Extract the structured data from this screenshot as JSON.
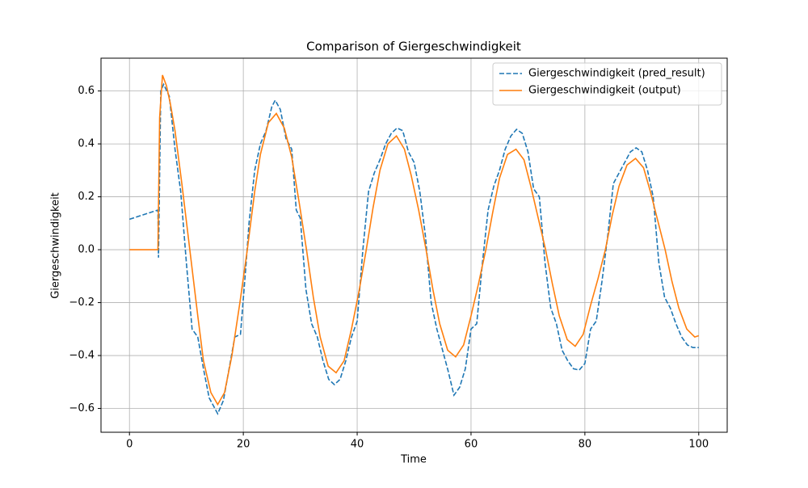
{
  "chart_data": {
    "type": "line",
    "title": "Comparison of Giergeschwindigkeit",
    "x_label": "Time",
    "y_label": "Giergeschwindigkeit",
    "xlim": [
      -5,
      105
    ],
    "ylim": [
      -0.69,
      0.724
    ],
    "xticks": [
      0,
      20,
      40,
      60,
      80,
      100
    ],
    "yticks": [
      {
        "value": -0.6,
        "label": "−0.6"
      },
      {
        "value": -0.4,
        "label": "−0.4"
      },
      {
        "value": -0.2,
        "label": "−0.2"
      },
      {
        "value": 0,
        "label": "0.0"
      },
      0.2,
      0.4,
      0.6
    ],
    "grid": true,
    "legend": "upper right",
    "series": [
      {
        "name": "Giergeschwindigkeit (pred_result)",
        "color": "#1f77b4",
        "dashed": true,
        "x": [
          0,
          5,
          5.1,
          5.5,
          6,
          7,
          8,
          9,
          10,
          11,
          12,
          13,
          14,
          15.5,
          16.5,
          17.5,
          18.5,
          19.5,
          20.5,
          21,
          22,
          23,
          24,
          25,
          25.6,
          26.5,
          27.5,
          28.5,
          29.3,
          30,
          31,
          32,
          33,
          34,
          35,
          36,
          37,
          38,
          39,
          40,
          41,
          42,
          43,
          44,
          45,
          46,
          47,
          48,
          49,
          50,
          51,
          52,
          53,
          54,
          55,
          56,
          57,
          58,
          59,
          60,
          61,
          62,
          63,
          64,
          65,
          66,
          67,
          68,
          69,
          70,
          71,
          72,
          73,
          74,
          75,
          76,
          77,
          78,
          79,
          80,
          81,
          82,
          83,
          84,
          85,
          86,
          87,
          88,
          89,
          90,
          91,
          92,
          93,
          94,
          95,
          96,
          97,
          98,
          99,
          100
        ],
        "values": [
          0.115,
          0.15,
          -0.03,
          0.6,
          0.625,
          0.58,
          0.38,
          0.22,
          -0.05,
          -0.3,
          -0.33,
          -0.45,
          -0.56,
          -0.62,
          -0.57,
          -0.45,
          -0.33,
          -0.32,
          -0.05,
          0.1,
          0.3,
          0.4,
          0.45,
          0.54,
          0.565,
          0.53,
          0.42,
          0.38,
          0.15,
          0.12,
          -0.15,
          -0.28,
          -0.33,
          -0.42,
          -0.49,
          -0.51,
          -0.49,
          -0.42,
          -0.33,
          -0.27,
          0.0,
          0.22,
          0.29,
          0.34,
          0.4,
          0.44,
          0.46,
          0.45,
          0.37,
          0.33,
          0.22,
          0.05,
          -0.2,
          -0.3,
          -0.38,
          -0.46,
          -0.55,
          -0.52,
          -0.45,
          -0.3,
          -0.28,
          -0.05,
          0.15,
          0.24,
          0.3,
          0.38,
          0.43,
          0.455,
          0.44,
          0.37,
          0.23,
          0.2,
          -0.05,
          -0.22,
          -0.28,
          -0.38,
          -0.42,
          -0.45,
          -0.455,
          -0.43,
          -0.3,
          -0.27,
          -0.12,
          0.05,
          0.25,
          0.29,
          0.33,
          0.37,
          0.385,
          0.37,
          0.3,
          0.2,
          -0.05,
          -0.18,
          -0.22,
          -0.28,
          -0.33,
          -0.36,
          -0.37,
          -0.37
        ]
      },
      {
        "name": "Giergeschwindigkeit (output)",
        "color": "#ff7f0e",
        "dashed": false,
        "x": [
          0,
          5,
          5.3,
          5.8,
          6.5,
          7.2,
          8,
          9.2,
          10.6,
          12,
          13,
          14.3,
          15.5,
          16.7,
          18,
          19.4,
          20.7,
          22,
          23,
          24.4,
          25.8,
          27.2,
          28.5,
          29.8,
          31.1,
          32.3,
          33.5,
          34.9,
          36.3,
          37.7,
          39,
          40.3,
          41.6,
          42.8,
          44,
          45.4,
          46.9,
          48.3,
          49.5,
          50.8,
          52.1,
          53.3,
          54.5,
          55.9,
          57.3,
          58.7,
          60,
          61.3,
          62.6,
          63.8,
          65,
          66.4,
          67.9,
          69.3,
          70.5,
          71.8,
          73.1,
          74.3,
          75.5,
          76.9,
          78.3,
          79.7,
          81,
          82.3,
          83.6,
          84.8,
          86,
          87.4,
          88.9,
          90.3,
          91.5,
          92.8,
          94.1,
          95.3,
          96.5,
          97.9,
          99.3,
          100
        ],
        "values": [
          0,
          0,
          0.5,
          0.66,
          0.62,
          0.55,
          0.45,
          0.25,
          0.0,
          -0.25,
          -0.42,
          -0.54,
          -0.585,
          -0.54,
          -0.4,
          -0.2,
          0.0,
          0.22,
          0.36,
          0.48,
          0.515,
          0.46,
          0.35,
          0.18,
          0.0,
          -0.18,
          -0.33,
          -0.44,
          -0.465,
          -0.42,
          -0.3,
          -0.16,
          0.0,
          0.16,
          0.3,
          0.4,
          0.43,
          0.38,
          0.28,
          0.15,
          0.0,
          -0.15,
          -0.28,
          -0.38,
          -0.405,
          -0.36,
          -0.25,
          -0.13,
          0.0,
          0.14,
          0.27,
          0.36,
          0.38,
          0.34,
          0.24,
          0.12,
          0.0,
          -0.13,
          -0.25,
          -0.34,
          -0.365,
          -0.32,
          -0.21,
          -0.11,
          0.0,
          0.13,
          0.24,
          0.32,
          0.345,
          0.31,
          0.22,
          0.11,
          0.0,
          -0.12,
          -0.22,
          -0.3,
          -0.33,
          -0.325
        ]
      }
    ]
  }
}
